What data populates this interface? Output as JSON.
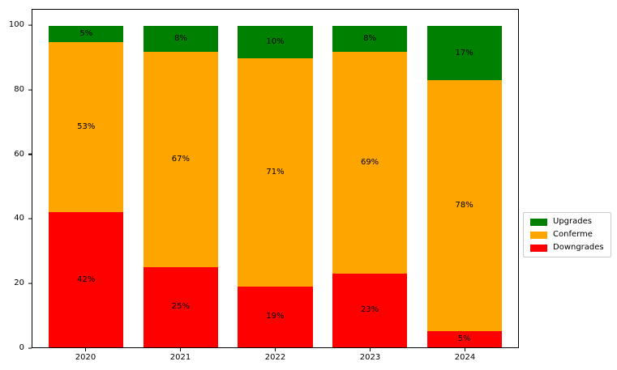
{
  "chart_data": {
    "type": "bar",
    "stacked": true,
    "title": "",
    "xlabel": "",
    "ylabel": "",
    "categories": [
      "2020",
      "2021",
      "2022",
      "2023",
      "2024"
    ],
    "series": [
      {
        "name": "Downgrades",
        "color": "#ff0000",
        "values": [
          42,
          25,
          19,
          23,
          5
        ],
        "labels": [
          "42%",
          "25%",
          "19%",
          "23%",
          "5%"
        ]
      },
      {
        "name": "Conferme",
        "color": "#ffa500",
        "values": [
          53,
          67,
          71,
          69,
          78
        ],
        "labels": [
          "53%",
          "67%",
          "71%",
          "69%",
          "78%"
        ]
      },
      {
        "name": "Upgrades",
        "color": "#008000",
        "values": [
          5,
          8,
          10,
          8,
          17
        ],
        "labels": [
          "5%",
          "8%",
          "10%",
          "8%",
          "17%"
        ]
      }
    ],
    "ylim": [
      0,
      105
    ],
    "yticks": [
      0,
      20,
      40,
      60,
      80,
      100
    ],
    "grid": false,
    "legend": {
      "position": "center-right",
      "entries": [
        {
          "label": "Upgrades",
          "color": "#008000"
        },
        {
          "label": "Conferme",
          "color": "#ffa500"
        },
        {
          "label": "Downgrades",
          "color": "#ff0000"
        }
      ]
    }
  }
}
